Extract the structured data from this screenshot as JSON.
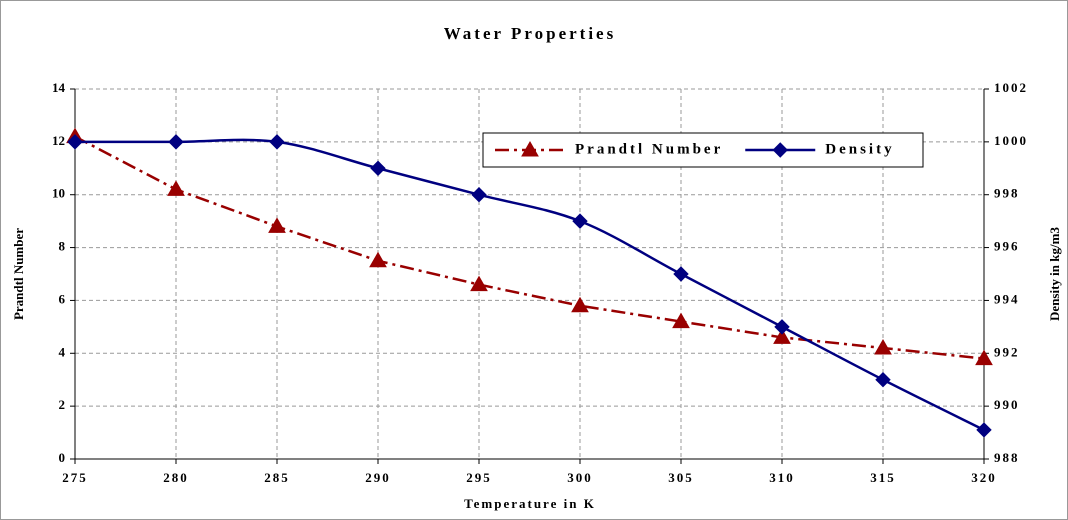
{
  "chart_data": {
    "type": "line",
    "title": "Water Properties",
    "x_label": "Temperature in K",
    "y_label": "Prandtl Number",
    "y2_label": "Density in kg/m3",
    "x": [
      275,
      280,
      285,
      290,
      295,
      300,
      305,
      310,
      315,
      320
    ],
    "xlim": [
      275,
      320
    ],
    "xticks": [
      275,
      280,
      285,
      290,
      295,
      300,
      305,
      310,
      315,
      320
    ],
    "ylim": [
      0,
      14
    ],
    "yticks": [
      0,
      2,
      4,
      6,
      8,
      10,
      12,
      14
    ],
    "y2lim": [
      988,
      1002
    ],
    "y2ticks": [
      988,
      990,
      992,
      994,
      996,
      998,
      1000,
      1002
    ],
    "grid": true,
    "legend": "top-right",
    "series": [
      {
        "name": "Prandtl Number",
        "color": "#990000",
        "marker": "triangle",
        "dash": "dashdot",
        "smooth": false,
        "values": [
          12.2,
          10.2,
          8.8,
          7.5,
          6.6,
          5.8,
          5.2,
          4.6,
          4.2,
          3.8
        ]
      },
      {
        "name": "Density",
        "color": "#000080",
        "marker": "diamond",
        "dash": "solid",
        "smooth": true,
        "axis": "y2",
        "values": [
          1000,
          1000,
          1000,
          999,
          998,
          997,
          995,
          993,
          991,
          989.1
        ]
      }
    ]
  }
}
